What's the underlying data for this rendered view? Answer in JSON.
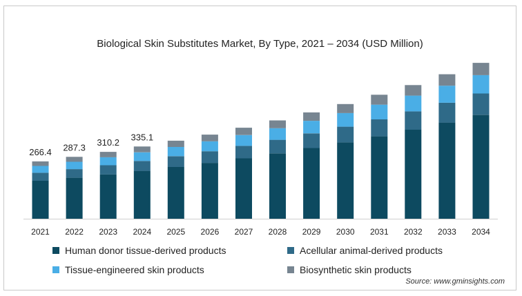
{
  "chart_data": {
    "type": "bar",
    "stacked": true,
    "title": "Biological Skin Substitutes Market, By Type, 2021 – 2034 (USD Million)",
    "xlabel": "",
    "ylabel": "",
    "ylim": [
      0,
      800
    ],
    "grid": false,
    "legend_position": "bottom",
    "categories": [
      "2021",
      "2022",
      "2023",
      "2024",
      "2025",
      "2026",
      "2027",
      "2028",
      "2029",
      "2030",
      "2031",
      "2032",
      "2033",
      "2034"
    ],
    "totals_labels": [
      "266.4",
      "287.3",
      "310.2",
      "335.1",
      "",
      "",
      "",
      "",
      "",
      "",
      "",
      "",
      "",
      ""
    ],
    "series": [
      {
        "name": "Human donor tissue-derived products",
        "color": "#0d4a60",
        "values": [
          176,
          190,
          205,
          222,
          240,
          259,
          280,
          303,
          328,
          354,
          382,
          413,
          446,
          482
        ]
      },
      {
        "name": "Acellular animal-derived products",
        "color": "#2f6a88",
        "values": [
          37,
          40,
          43,
          46,
          50,
          54,
          58,
          63,
          68,
          73,
          79,
          85,
          92,
          99
        ]
      },
      {
        "name": "Tissue-engineered skin products",
        "color": "#4aaee6",
        "values": [
          32,
          34,
          37,
          40,
          43,
          46,
          50,
          54,
          58,
          63,
          68,
          73,
          79,
          85
        ]
      },
      {
        "name": "Biosynthetic skin products",
        "color": "#778591",
        "values": [
          21,
          23,
          25,
          27,
          29,
          31,
          34,
          36,
          39,
          42,
          46,
          49,
          53,
          57
        ]
      }
    ]
  },
  "source": "Source: www.gminsights.com"
}
